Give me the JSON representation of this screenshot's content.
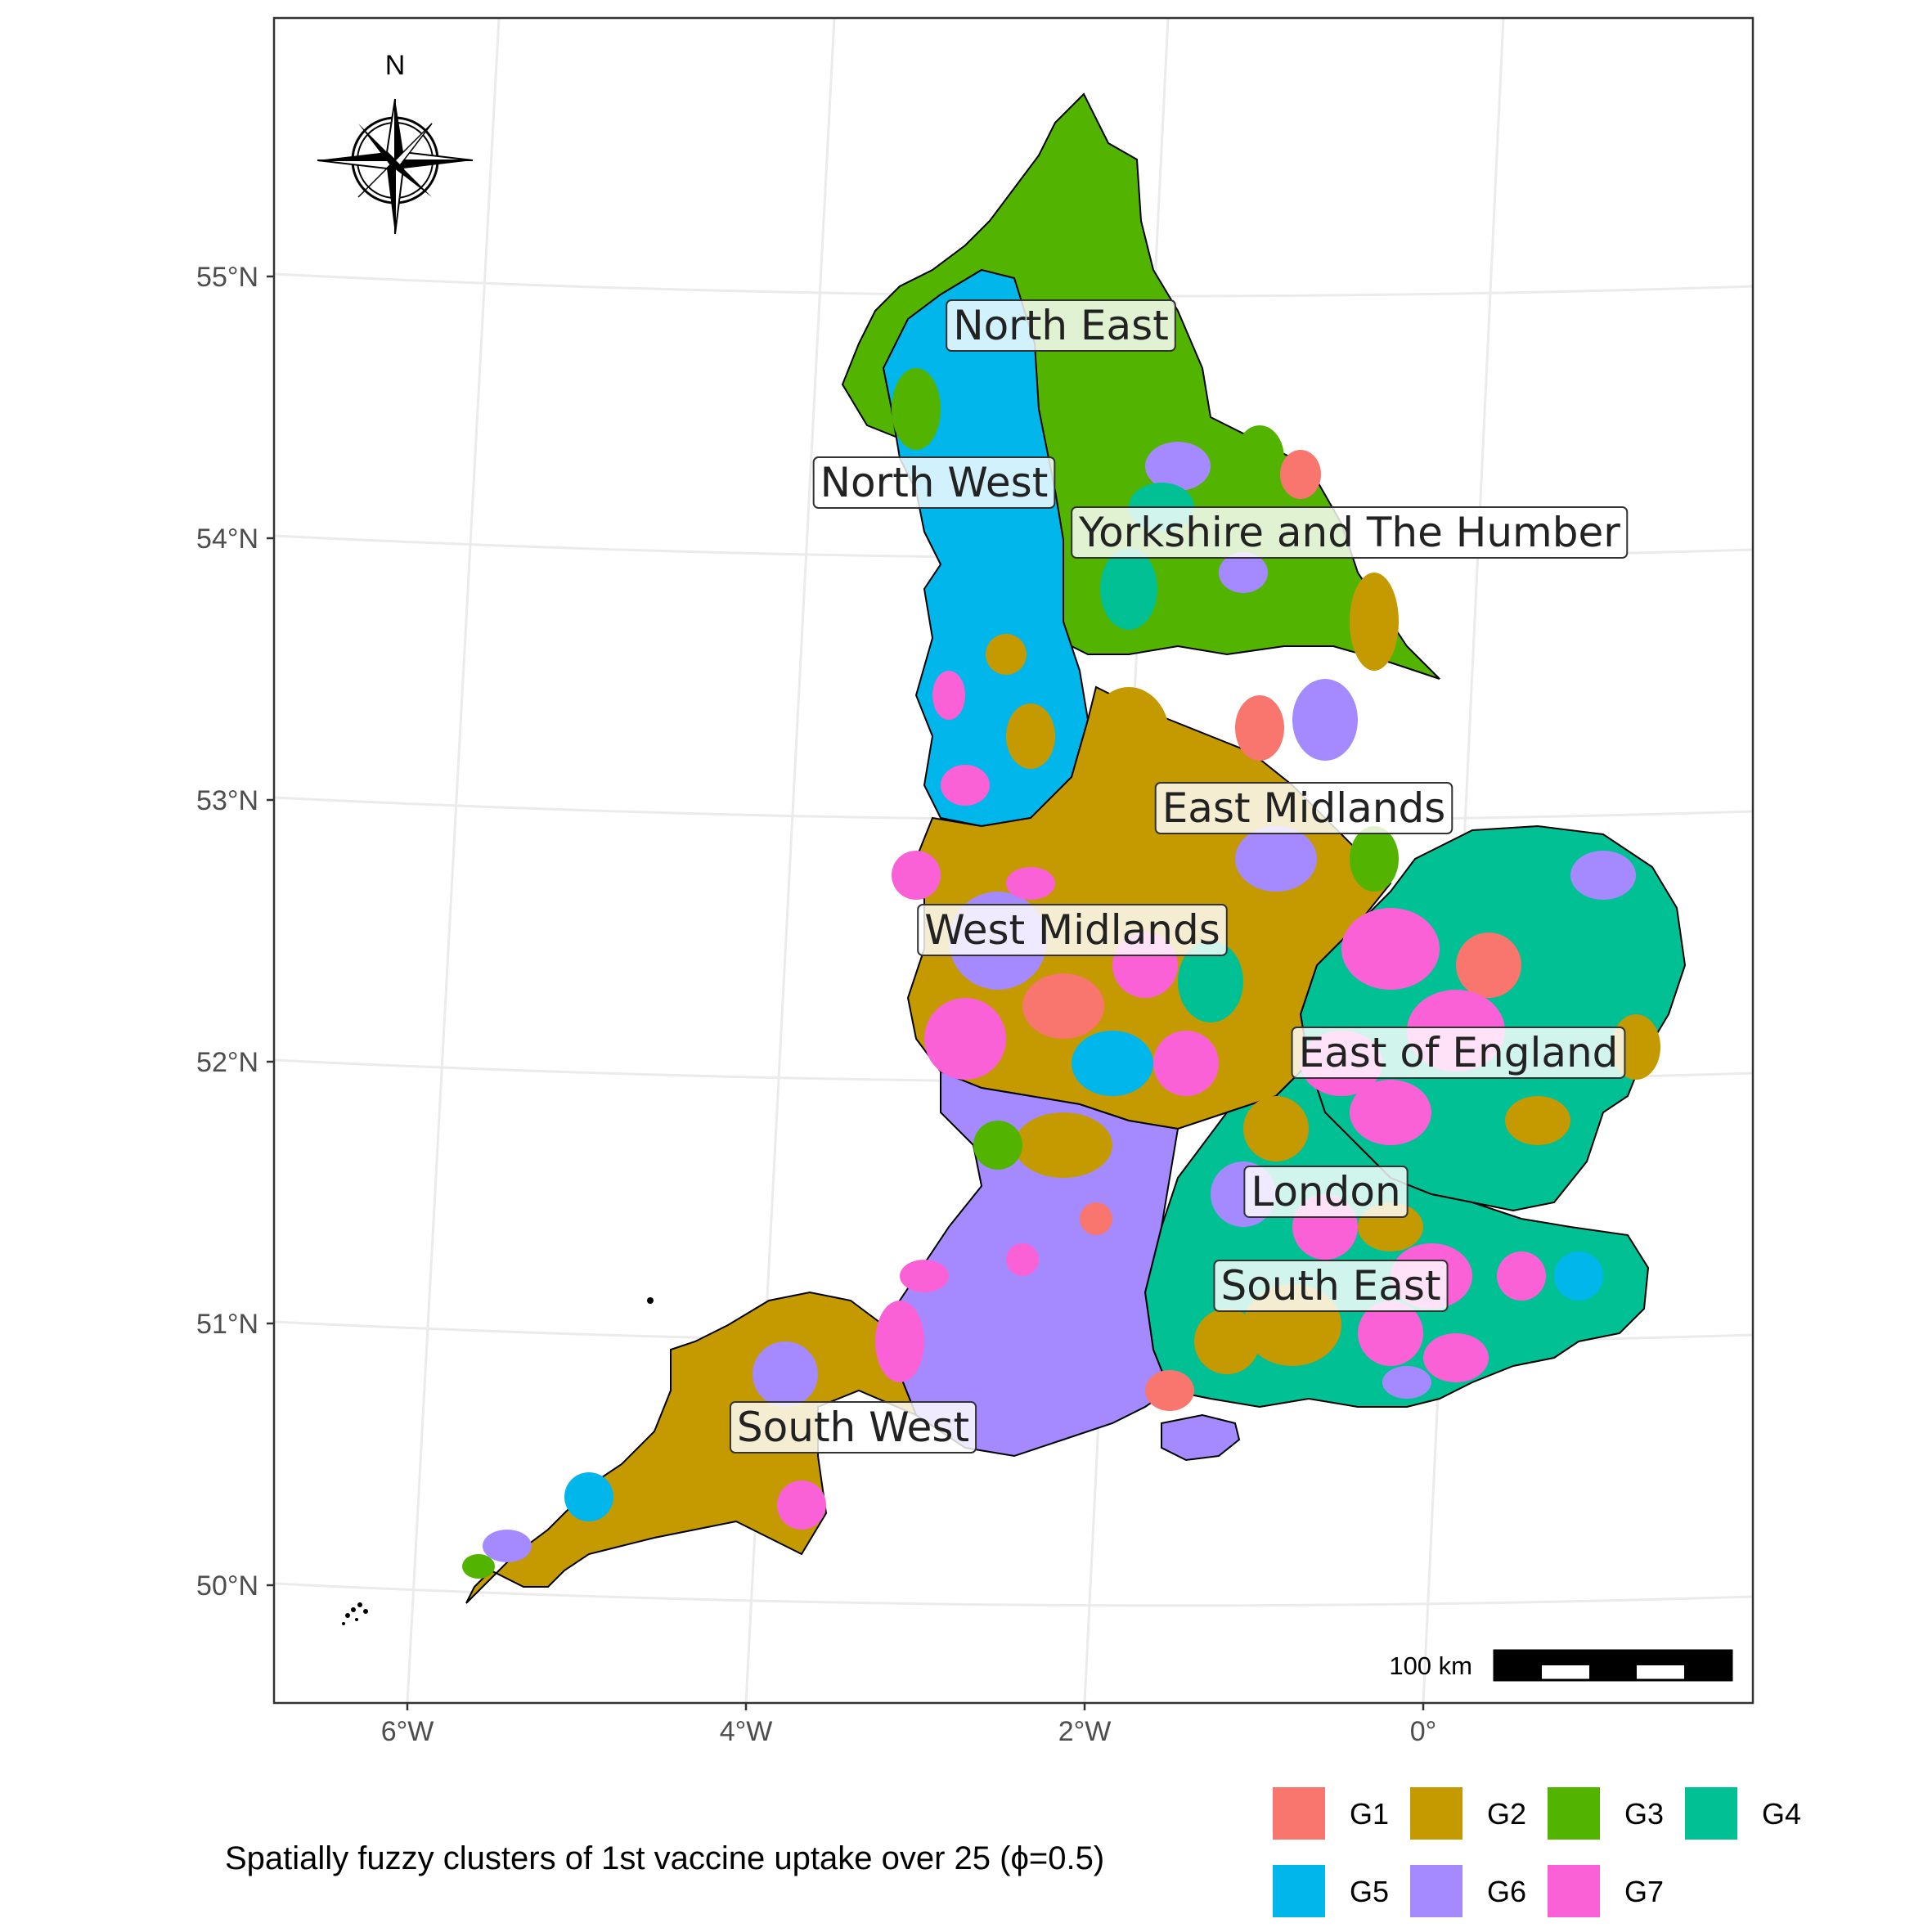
{
  "map": {
    "y_ticks": [
      "55°N",
      "54°N",
      "53°N",
      "52°N",
      "51°N",
      "50°N"
    ],
    "x_ticks": [
      "6°W",
      "4°W",
      "2°W",
      "0°"
    ],
    "north_label": "N",
    "scale_bar_label": "100 km",
    "regions": [
      {
        "name": "North East"
      },
      {
        "name": "North West"
      },
      {
        "name": "Yorkshire and The Humber"
      },
      {
        "name": "East Midlands"
      },
      {
        "name": "West Midlands"
      },
      {
        "name": "East of England"
      },
      {
        "name": "London"
      },
      {
        "name": "South East"
      },
      {
        "name": "South West"
      }
    ]
  },
  "legend": {
    "caption": "Spatially fuzzy clusters of 1st vaccine uptake over 25 (ϕ=0.5)",
    "items": [
      {
        "label": "G1",
        "color": "#F8766D"
      },
      {
        "label": "G2",
        "color": "#C49A00"
      },
      {
        "label": "G3",
        "color": "#53B400"
      },
      {
        "label": "G4",
        "color": "#00C094"
      },
      {
        "label": "G5",
        "color": "#00B6EB"
      },
      {
        "label": "G6",
        "color": "#A58AFF"
      },
      {
        "label": "G7",
        "color": "#FB61D7"
      }
    ]
  }
}
